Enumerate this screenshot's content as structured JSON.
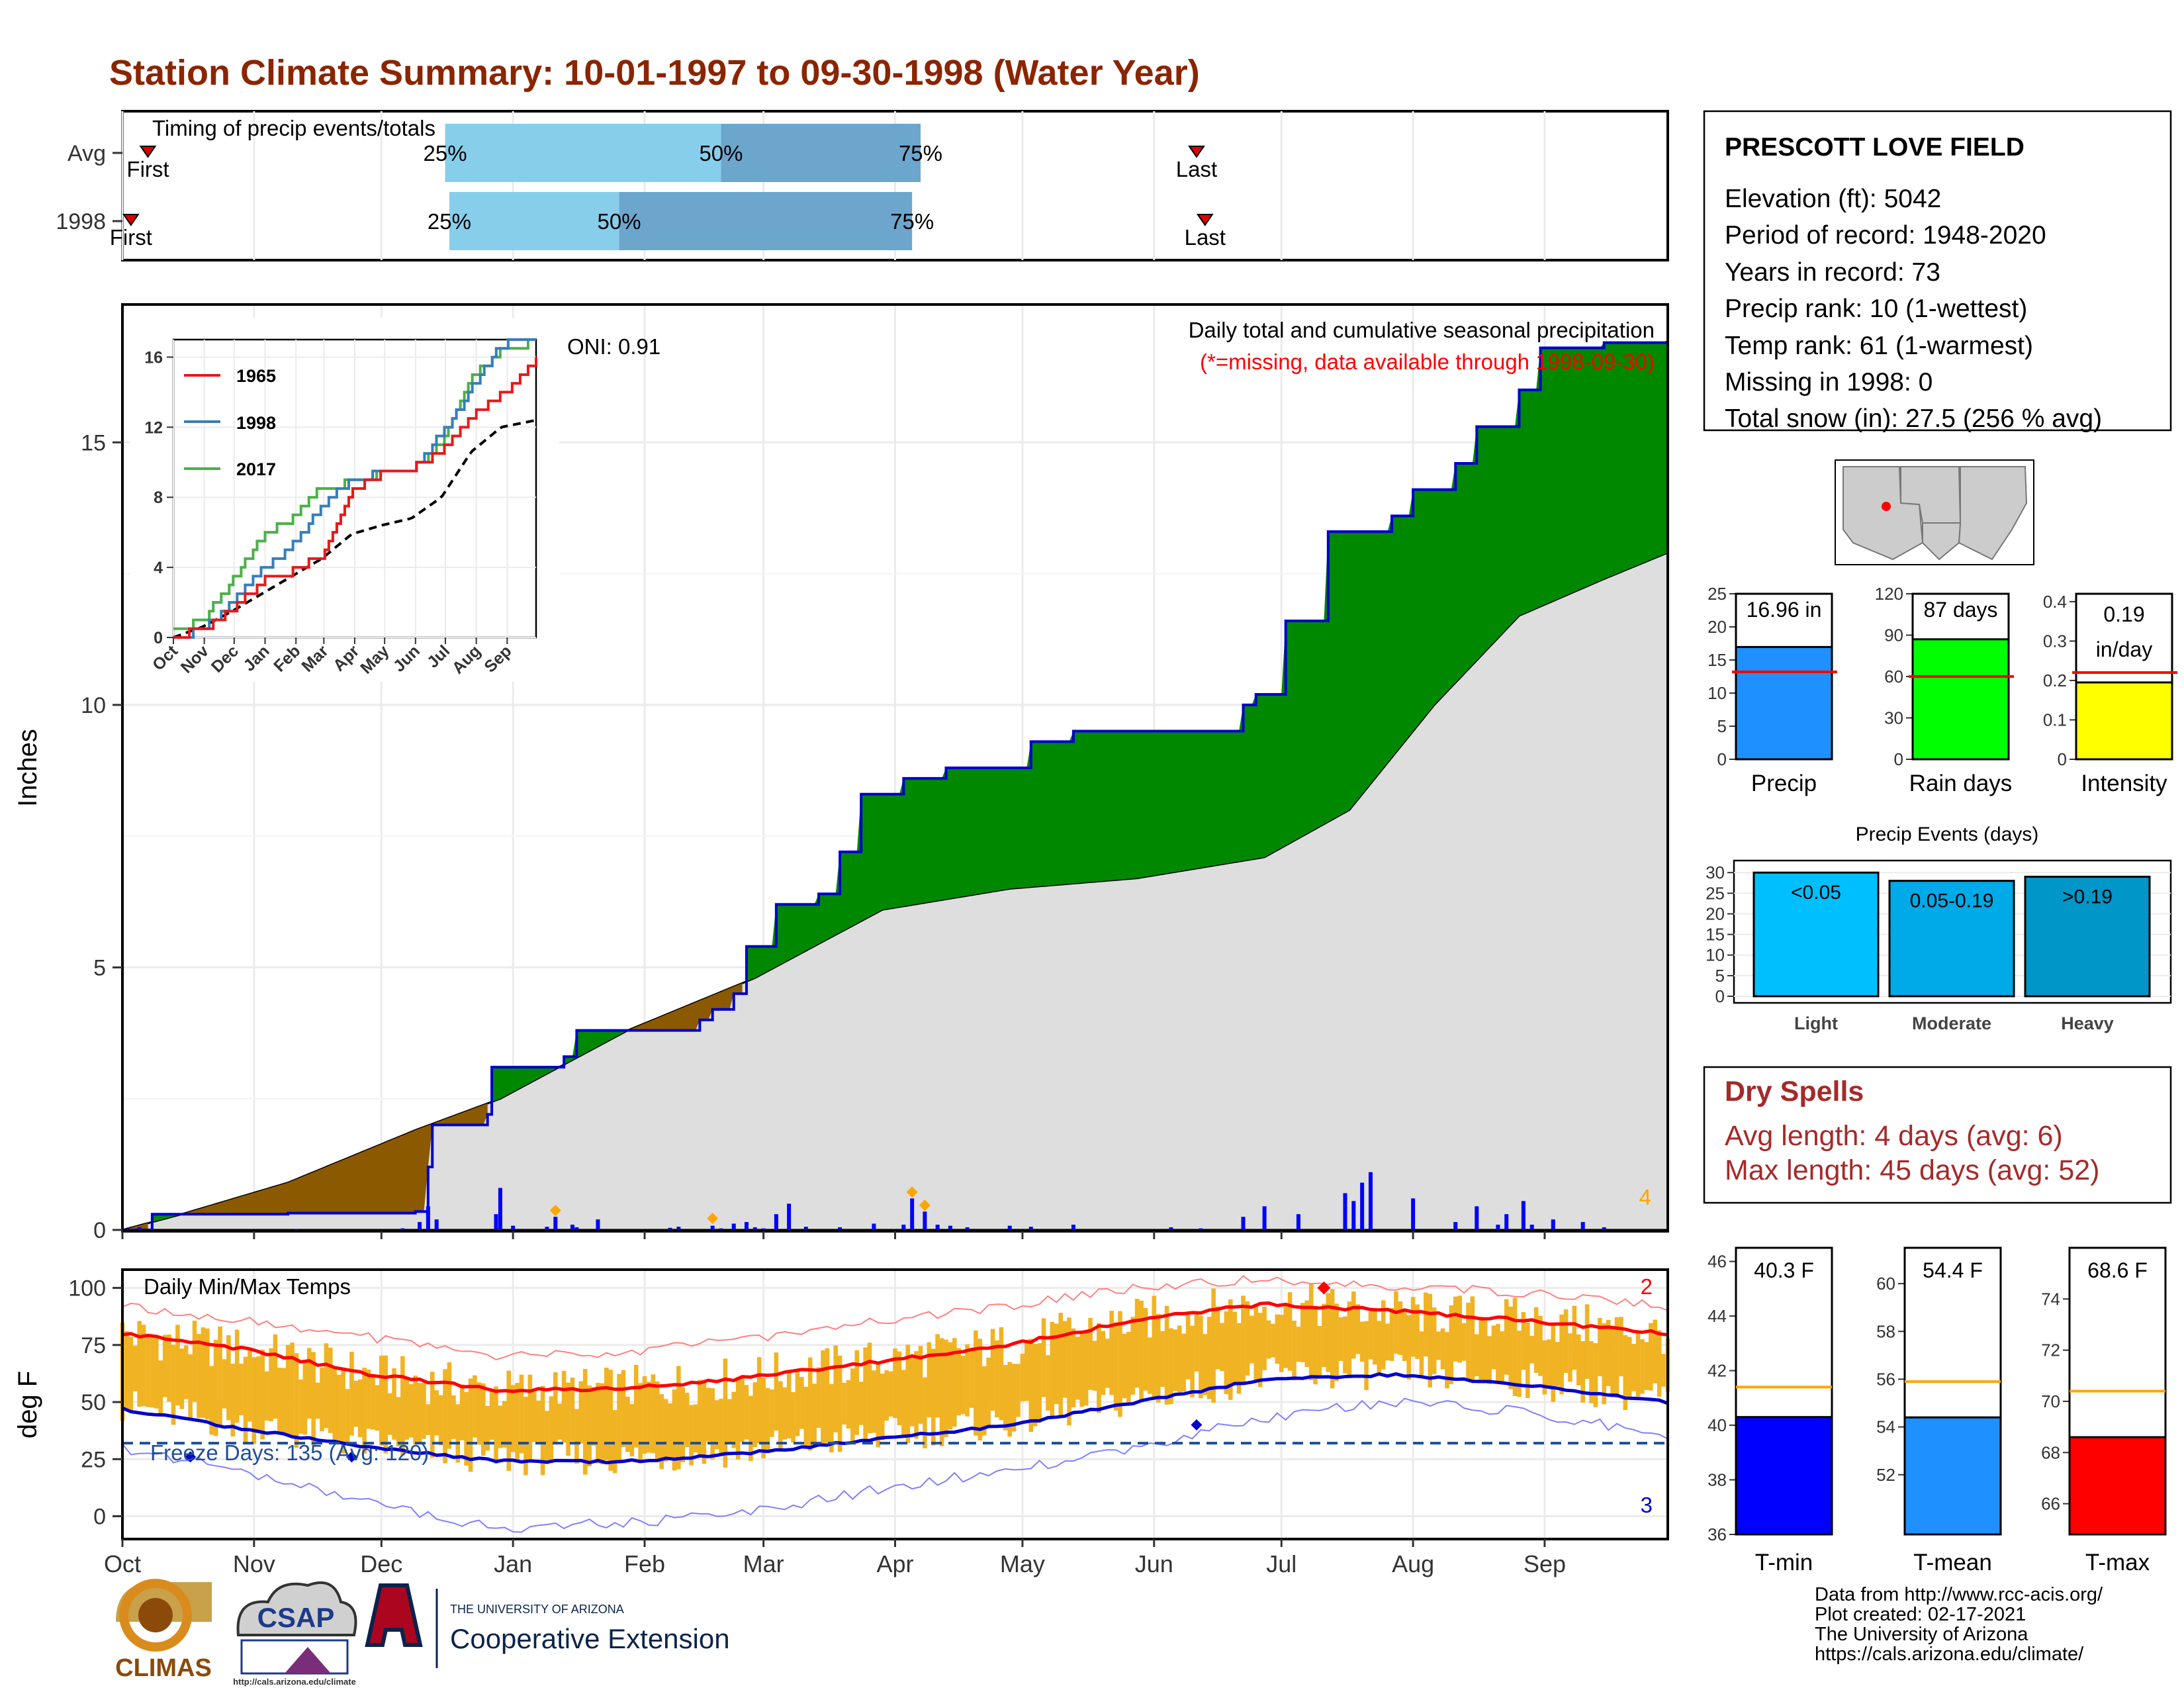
{
  "title": "Station Climate Summary: 10-01-1997 to 09-30-1998 (Water Year)",
  "months": [
    "Oct",
    "Nov",
    "Dec",
    "Jan",
    "Feb",
    "Mar",
    "Apr",
    "May",
    "Jun",
    "Jul",
    "Aug",
    "Sep"
  ],
  "timing": {
    "title": "Timing of precip events/totals",
    "rows": [
      {
        "label": "Avg",
        "first_day": 7,
        "p25_day": 77,
        "p50_day": 142,
        "p75_day": 189,
        "last_day": 254
      },
      {
        "label": "1998",
        "first_day": 3,
        "p25_day": 78,
        "p50_day": 118,
        "p75_day": 187,
        "last_day": 256
      }
    ],
    "first_label": "First",
    "last_label": "Last",
    "p25_label": "25%",
    "p50_label": "50%",
    "p75_label": "75%"
  },
  "precip": {
    "ylabel": "Inches",
    "title": "Daily total and cumulative seasonal precipitation",
    "missing_note": "(*=missing, data available through 1998-09-30)",
    "oni_label": "ONI: 0.91",
    "corner_count": "4",
    "yticks": [
      0,
      5,
      10,
      15
    ]
  },
  "inset": {
    "legend": [
      "1965",
      "1998",
      "2017"
    ],
    "yticks": [
      0,
      4,
      8,
      12,
      16
    ],
    "months": [
      "Oct",
      "Nov",
      "Dec",
      "Jan",
      "Feb",
      "Mar",
      "Apr",
      "May",
      "Jun",
      "Jul",
      "Aug",
      "Sep"
    ]
  },
  "temps": {
    "ylabel": "deg F",
    "title": "Daily Min/Max Temps",
    "freeze_label": "Freeze Days: 135 (Avg: 120)",
    "count_high": "2",
    "count_low": "3",
    "yticks": [
      0,
      25,
      50,
      75,
      100
    ]
  },
  "station": {
    "name": "PRESCOTT LOVE FIELD",
    "lines": [
      "Elevation (ft): 5042",
      "Period of record: 1948-2020",
      "Years in record: 73",
      "Precip rank: 10 (1-wettest)",
      "Temp rank: 61 (1-warmest)",
      "Missing in 1998: 0",
      "Total snow (in): 27.5 (256 % avg)"
    ]
  },
  "dry_spells": {
    "title": "Dry Spells",
    "avg": "Avg length: 4 days (avg: 6)",
    "max": "Max length: 45 days (avg: 52)"
  },
  "events": {
    "title": "Precip Events (days)",
    "yticks": [
      0,
      5,
      10,
      15,
      20,
      25,
      30
    ],
    "bars": [
      {
        "bar_label": "<0.05",
        "axis_label": "Light",
        "value": 30,
        "color": "#00bfff"
      },
      {
        "bar_label": "0.05-0.19",
        "axis_label": "Moderate",
        "value": 28,
        "color": "#00a9e8"
      },
      {
        "bar_label": ">0.19",
        "axis_label": "Heavy",
        "value": 29,
        "color": "#0096c7"
      }
    ]
  },
  "summary_bars": [
    {
      "name": "Precip",
      "label": "16.96 in",
      "value": 16.96,
      "avg": 13.2,
      "max": 25,
      "ticks": [
        0,
        5,
        10,
        15,
        20,
        25
      ],
      "color": "#1e90ff"
    },
    {
      "name": "Rain days",
      "label": "87 days",
      "value": 87,
      "avg": 60,
      "max": 120,
      "ticks": [
        0,
        30,
        60,
        90,
        120
      ],
      "color": "#00ff00"
    },
    {
      "name": "Intensity",
      "label": "0.19",
      "label2": "in/day",
      "value": 0.195,
      "avg": 0.22,
      "max": 0.42,
      "ticks": [
        0.0,
        0.1,
        0.2,
        0.3,
        0.4
      ],
      "color": "#ffff00"
    }
  ],
  "temp_bars": [
    {
      "name": "T-min",
      "label": "40.3 F",
      "value": 40.3,
      "avg": 41.4,
      "min": 36,
      "max": 46.5,
      "ticks": [
        36,
        38,
        40,
        42,
        44,
        46
      ],
      "color": "#0000ff"
    },
    {
      "name": "T-mean",
      "label": "54.4 F",
      "value": 54.4,
      "avg": 55.9,
      "min": 49.5,
      "max": 61.5,
      "ticks": [
        52,
        54,
        56,
        58,
        60
      ],
      "color": "#1e90ff"
    },
    {
      "name": "T-max",
      "label": "68.6 F",
      "value": 68.6,
      "avg": 70.4,
      "min": 64.8,
      "max": 76,
      "ticks": [
        66,
        68,
        70,
        72,
        74
      ],
      "color": "#ff0000"
    }
  ],
  "footer": {
    "lines": [
      "Data from http://www.rcc-acis.org/",
      "Plot created: 02-17-2021",
      "The University of Arizona",
      "https://cals.arizona.edu/climate/"
    ],
    "climas": "CLIMAS",
    "csap": "CSAP",
    "csap_url": "http://cals.arizona.edu/climate",
    "ua_small": "THE UNIVERSITY OF ARIZONA",
    "ua_big": "Cooperative Extension"
  },
  "chart_data": {
    "type": "area",
    "x_unit": "day of water year (1 = 1997-10-01)",
    "cumulative_1998": [
      [
        1,
        0
      ],
      [
        8,
        0.3
      ],
      [
        40,
        0.32
      ],
      [
        70,
        0.35
      ],
      [
        73,
        1.2
      ],
      [
        74,
        2.0
      ],
      [
        87,
        2.2
      ],
      [
        88,
        3.1
      ],
      [
        105,
        3.3
      ],
      [
        108,
        3.8
      ],
      [
        137,
        4.0
      ],
      [
        140,
        4.2
      ],
      [
        145,
        4.5
      ],
      [
        148,
        5.4
      ],
      [
        155,
        6.2
      ],
      [
        165,
        6.4
      ],
      [
        170,
        7.2
      ],
      [
        175,
        8.3
      ],
      [
        185,
        8.6
      ],
      [
        195,
        8.8
      ],
      [
        215,
        9.3
      ],
      [
        225,
        9.5
      ],
      [
        260,
        9.5
      ],
      [
        265,
        10.0
      ],
      [
        268,
        10.2
      ],
      [
        275,
        11.6
      ],
      [
        285,
        13.3
      ],
      [
        300,
        13.6
      ],
      [
        305,
        14.1
      ],
      [
        315,
        14.6
      ],
      [
        320,
        15.3
      ],
      [
        330,
        16.0
      ],
      [
        335,
        16.8
      ],
      [
        350,
        16.9
      ],
      [
        365,
        16.96
      ]
    ],
    "cumulative_avg": [
      [
        1,
        0
      ],
      [
        15,
        0.3
      ],
      [
        40,
        0.9
      ],
      [
        70,
        1.9
      ],
      [
        90,
        2.5
      ],
      [
        120,
        3.8
      ],
      [
        150,
        4.8
      ],
      [
        180,
        6.1
      ],
      [
        210,
        6.5
      ],
      [
        240,
        6.7
      ],
      [
        270,
        7.1
      ],
      [
        290,
        8.0
      ],
      [
        310,
        10.0
      ],
      [
        330,
        11.7
      ],
      [
        350,
        12.4
      ],
      [
        365,
        12.9
      ]
    ],
    "daily_precip": [
      [
        5,
        0.05
      ],
      [
        42,
        0.02
      ],
      [
        67,
        0.03
      ],
      [
        71,
        0.15
      ],
      [
        73,
        0.45
      ],
      [
        75,
        0.2
      ],
      [
        89,
        0.3
      ],
      [
        90,
        0.8
      ],
      [
        93,
        0.08
      ],
      [
        101,
        0.06
      ],
      [
        103,
        0.25
      ],
      [
        107,
        0.1
      ],
      [
        108,
        0.05
      ],
      [
        113,
        0.2
      ],
      [
        130,
        0.04
      ],
      [
        132,
        0.06
      ],
      [
        140,
        0.08
      ],
      [
        142,
        0.03
      ],
      [
        145,
        0.12
      ],
      [
        148,
        0.15
      ],
      [
        150,
        0.05
      ],
      [
        152,
        0.03
      ],
      [
        155,
        0.3
      ],
      [
        158,
        0.5
      ],
      [
        162,
        0.06
      ],
      [
        170,
        0.05
      ],
      [
        178,
        0.12
      ],
      [
        185,
        0.1
      ],
      [
        187,
        0.6
      ],
      [
        190,
        0.35
      ],
      [
        193,
        0.1
      ],
      [
        196,
        0.08
      ],
      [
        200,
        0.05
      ],
      [
        210,
        0.08
      ],
      [
        215,
        0.06
      ],
      [
        225,
        0.1
      ],
      [
        248,
        0.05
      ],
      [
        255,
        0.03
      ],
      [
        265,
        0.25
      ],
      [
        270,
        0.45
      ],
      [
        278,
        0.3
      ],
      [
        289,
        0.7
      ],
      [
        291,
        0.55
      ],
      [
        293,
        0.9
      ],
      [
        295,
        1.1
      ],
      [
        305,
        0.6
      ],
      [
        315,
        0.15
      ],
      [
        320,
        0.45
      ],
      [
        325,
        0.1
      ],
      [
        327,
        0.3
      ],
      [
        331,
        0.55
      ],
      [
        333,
        0.1
      ],
      [
        338,
        0.2
      ],
      [
        345,
        0.15
      ],
      [
        350,
        0.05
      ]
    ],
    "inset_1998": [
      [
        1,
        0
      ],
      [
        30,
        0.4
      ],
      [
        60,
        2.0
      ],
      [
        90,
        3.9
      ],
      [
        120,
        5.2
      ],
      [
        150,
        7.6
      ],
      [
        180,
        8.9
      ],
      [
        210,
        9.4
      ],
      [
        240,
        9.5
      ],
      [
        270,
        11.6
      ],
      [
        300,
        14.2
      ],
      [
        330,
        16.7
      ],
      [
        365,
        16.96
      ]
    ],
    "inset_1965": [
      [
        1,
        0.2
      ],
      [
        30,
        0.3
      ],
      [
        60,
        1.6
      ],
      [
        90,
        3.2
      ],
      [
        120,
        3.8
      ],
      [
        150,
        4.7
      ],
      [
        180,
        8.5
      ],
      [
        210,
        9.3
      ],
      [
        240,
        9.6
      ],
      [
        270,
        10.6
      ],
      [
        300,
        12.7
      ],
      [
        330,
        13.8
      ],
      [
        365,
        16.0
      ]
    ],
    "inset_2017": [
      [
        1,
        0.5
      ],
      [
        30,
        0.9
      ],
      [
        60,
        3.3
      ],
      [
        90,
        5.7
      ],
      [
        120,
        6.8
      ],
      [
        150,
        8.6
      ],
      [
        180,
        8.8
      ],
      [
        210,
        9.4
      ],
      [
        240,
        9.6
      ],
      [
        270,
        11.0
      ],
      [
        300,
        15.0
      ],
      [
        330,
        16.3
      ],
      [
        365,
        16.9
      ]
    ],
    "inset_avg": [
      [
        1,
        0
      ],
      [
        30,
        0.6
      ],
      [
        60,
        1.5
      ],
      [
        90,
        2.5
      ],
      [
        120,
        3.5
      ],
      [
        150,
        4.5
      ],
      [
        180,
        5.9
      ],
      [
        210,
        6.4
      ],
      [
        240,
        6.8
      ],
      [
        270,
        8.0
      ],
      [
        300,
        10.6
      ],
      [
        330,
        12.0
      ],
      [
        365,
        12.4
      ]
    ],
    "temp_normal_max": [
      [
        1,
        80
      ],
      [
        30,
        73
      ],
      [
        60,
        62
      ],
      [
        90,
        55
      ],
      [
        120,
        56
      ],
      [
        150,
        61
      ],
      [
        180,
        68
      ],
      [
        210,
        75
      ],
      [
        240,
        86
      ],
      [
        270,
        93
      ],
      [
        300,
        90
      ],
      [
        330,
        86
      ],
      [
        365,
        80
      ]
    ],
    "temp_normal_min": [
      [
        1,
        47
      ],
      [
        30,
        38
      ],
      [
        60,
        30
      ],
      [
        90,
        24
      ],
      [
        120,
        24
      ],
      [
        150,
        28
      ],
      [
        180,
        34
      ],
      [
        210,
        40
      ],
      [
        240,
        50
      ],
      [
        270,
        60
      ],
      [
        300,
        62
      ],
      [
        330,
        58
      ],
      [
        365,
        50
      ]
    ],
    "temp_record_max": [
      [
        1,
        92
      ],
      [
        30,
        86
      ],
      [
        60,
        78
      ],
      [
        90,
        70
      ],
      [
        120,
        72
      ],
      [
        150,
        78
      ],
      [
        180,
        86
      ],
      [
        210,
        92
      ],
      [
        240,
        100
      ],
      [
        270,
        104
      ],
      [
        300,
        101
      ],
      [
        330,
        98
      ],
      [
        365,
        92
      ]
    ],
    "temp_record_min": [
      [
        1,
        30
      ],
      [
        30,
        20
      ],
      [
        60,
        5
      ],
      [
        90,
        -5
      ],
      [
        120,
        -3
      ],
      [
        150,
        2
      ],
      [
        180,
        12
      ],
      [
        210,
        20
      ],
      [
        240,
        30
      ],
      [
        270,
        43
      ],
      [
        300,
        50
      ],
      [
        330,
        46
      ],
      [
        365,
        36
      ]
    ],
    "freeze_threshold": 32,
    "temp_ylim": [
      -10,
      108
    ],
    "precip_ylim": [
      0,
      17.5
    ]
  }
}
